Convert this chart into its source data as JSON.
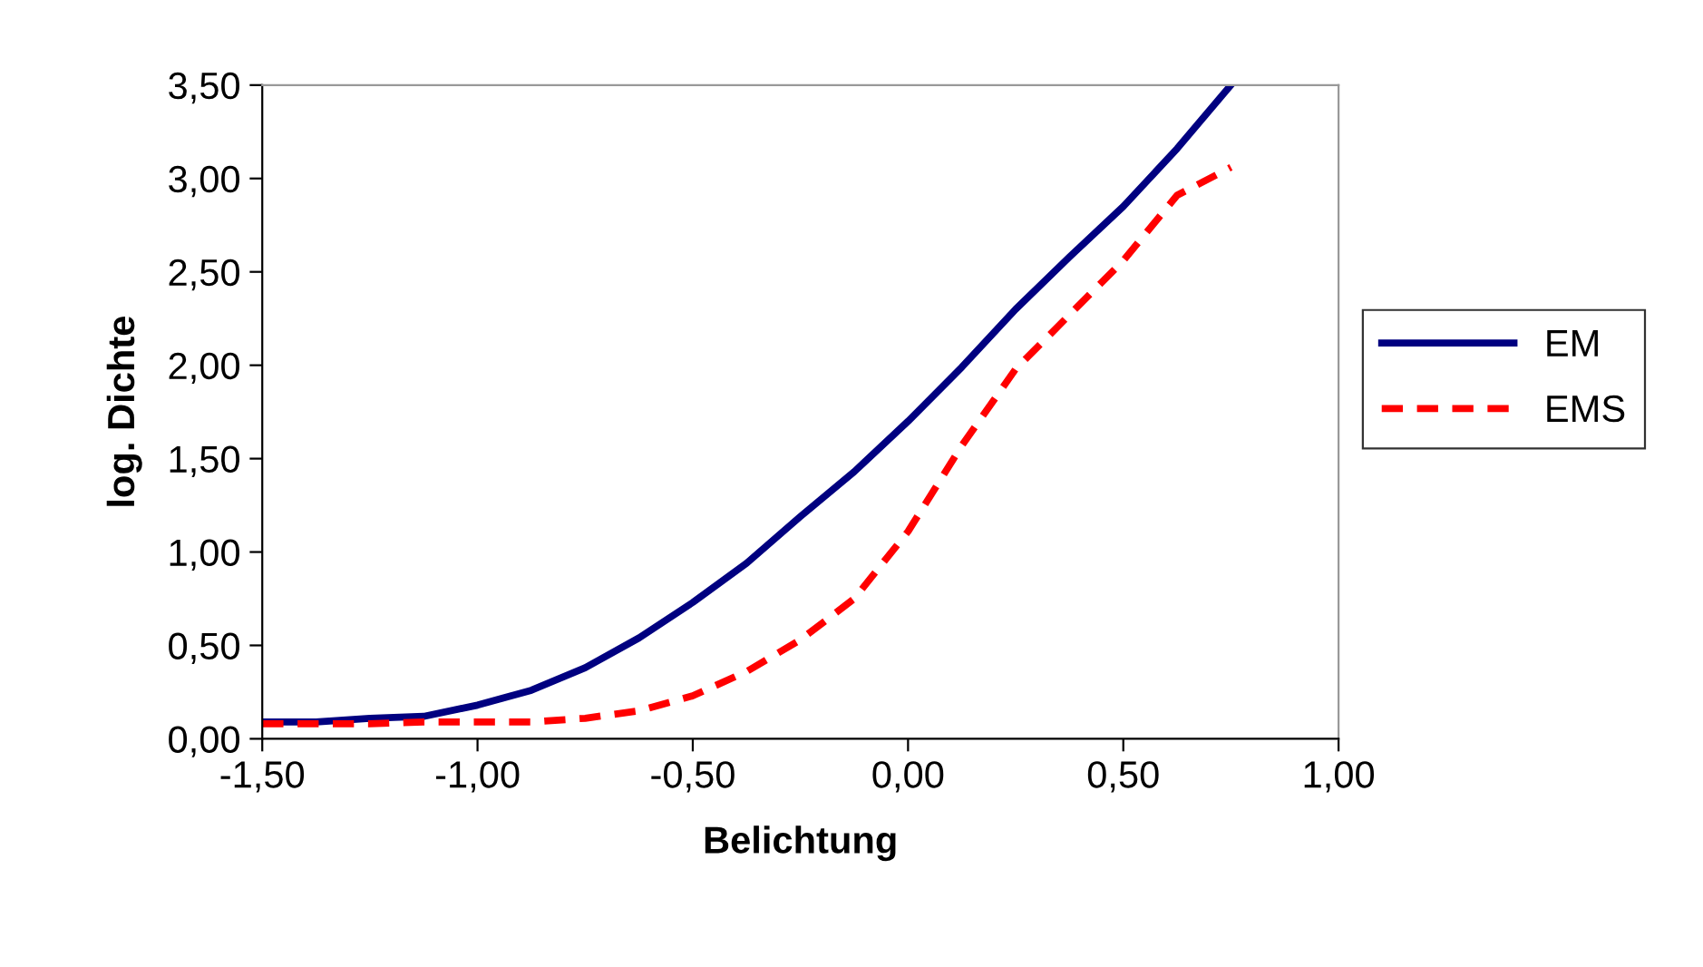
{
  "chart_data": {
    "type": "line",
    "xlabel": "Belichtung",
    "ylabel": "log. Dichte",
    "x": [
      -1.5,
      -1.375,
      -1.25,
      -1.125,
      -1.0,
      -0.875,
      -0.75,
      -0.625,
      -0.5,
      -0.375,
      -0.25,
      -0.125,
      0.0,
      0.125,
      0.25,
      0.375,
      0.5,
      0.625,
      0.75
    ],
    "series": [
      {
        "name": "EM",
        "color": "#000080",
        "line_style": "solid",
        "values": [
          0.09,
          0.09,
          0.11,
          0.12,
          0.18,
          0.26,
          0.38,
          0.54,
          0.73,
          0.94,
          1.19,
          1.43,
          1.7,
          1.99,
          2.3,
          2.58,
          2.85,
          3.16,
          3.5
        ]
      },
      {
        "name": "EMS",
        "color": "#ff0000",
        "line_style": "dashed",
        "values": [
          0.08,
          0.08,
          0.08,
          0.09,
          0.09,
          0.09,
          0.11,
          0.15,
          0.23,
          0.36,
          0.53,
          0.75,
          1.11,
          1.57,
          1.98,
          2.27,
          2.56,
          2.91,
          3.06
        ]
      }
    ],
    "xlim": [
      -1.5,
      1.0
    ],
    "xticks": [
      {
        "value": -1.5,
        "label": "-1,50"
      },
      {
        "value": -1.0,
        "label": "-1,00"
      },
      {
        "value": -0.5,
        "label": "-0,50"
      },
      {
        "value": 0.0,
        "label": "0,00"
      },
      {
        "value": 0.5,
        "label": "0,50"
      },
      {
        "value": 1.0,
        "label": "1,00"
      }
    ],
    "ylim": [
      0,
      3.5
    ],
    "yticks": [
      {
        "value": 0,
        "label": "0,00"
      },
      {
        "value": 0.5,
        "label": "0,50"
      },
      {
        "value": 1.0,
        "label": "1,00"
      },
      {
        "value": 1.5,
        "label": "1,50"
      },
      {
        "value": 2.0,
        "label": "2,00"
      },
      {
        "value": 2.5,
        "label": "2,50"
      },
      {
        "value": 3.0,
        "label": "3,00"
      },
      {
        "value": 3.5,
        "label": "3,50"
      }
    ],
    "grid": false,
    "legend": "right",
    "marker": "none"
  }
}
